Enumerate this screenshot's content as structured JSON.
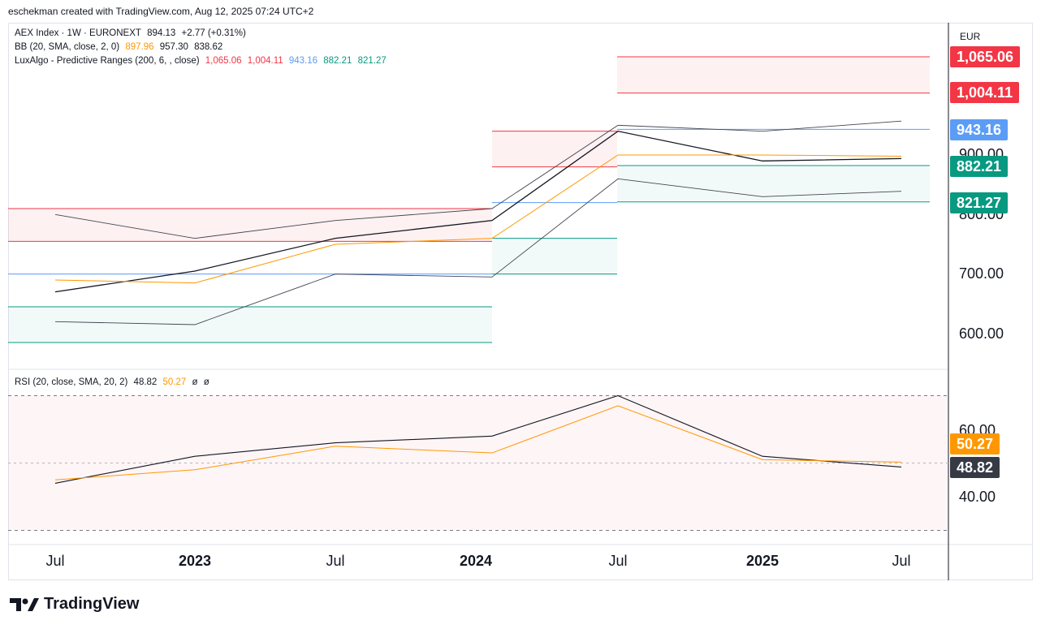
{
  "header": {
    "created_by": "eschekman created with TradingView.com, Aug 12, 2025 07:24 UTC+2"
  },
  "legend": {
    "main": {
      "symbol": "AEX Index · 1W · EURONEXT",
      "price": "894.13",
      "change": "+2.77 (+0.31%)"
    },
    "bb": {
      "name": "BB (20, SMA, close, 2, 0)",
      "basis": "897.96",
      "upper": "957.30",
      "lower": "838.62"
    },
    "lux": {
      "name": "LuxAlgo - Predictive Ranges (200, 6, , close)",
      "r2": "1,065.06",
      "r1": "1,004.11",
      "avg": "943.16",
      "s1": "882.21",
      "s2": "821.27"
    },
    "rsi": {
      "name": "RSI (20, close, SMA, 20, 2)",
      "rsi": "48.82",
      "ma": "50.27",
      "x1": "ø",
      "x2": "ø"
    }
  },
  "axis": {
    "currency": "EUR",
    "price_ticks": [
      "900.00",
      "800.00",
      "700.00",
      "600.00"
    ],
    "rsi_ticks": [
      "60.00",
      "40.00"
    ],
    "x_ticks": [
      {
        "label": "Jul",
        "bold": false
      },
      {
        "label": "2023",
        "bold": true
      },
      {
        "label": "Jul",
        "bold": false
      },
      {
        "label": "2024",
        "bold": true
      },
      {
        "label": "Jul",
        "bold": false
      },
      {
        "label": "2025",
        "bold": true
      },
      {
        "label": "Jul",
        "bold": false
      }
    ]
  },
  "badges": {
    "r2": "1,065.06",
    "r1": "1,004.11",
    "avg": "943.16",
    "s1": "882.21",
    "s2": "821.27",
    "rsi_ma": "50.27",
    "rsi": "48.82"
  },
  "colors": {
    "resistance": "#f23645",
    "average": "#5b9cf6",
    "support": "#089981",
    "bb_basis": "#ff9800",
    "price": "#131722",
    "bb_band": "#434651",
    "rsi_ma": "#ff9800",
    "rsi_badge": "#363a45"
  },
  "brand": "TradingView",
  "chart_data": [
    {
      "type": "line",
      "title": "AEX Index · 1W · EURONEXT",
      "ylabel": "EUR",
      "x": [
        "2022-07",
        "2023-01",
        "2023-07",
        "2024-01",
        "2024-07",
        "2025-01",
        "2025-07"
      ],
      "series": [
        {
          "name": "AEX Index",
          "values": [
            670,
            705,
            760,
            790,
            940,
            890,
            894
          ]
        },
        {
          "name": "BB basis",
          "values": [
            690,
            685,
            750,
            760,
            900,
            900,
            898
          ]
        },
        {
          "name": "BB upper",
          "values": [
            800,
            760,
            790,
            810,
            950,
            940,
            957
          ]
        },
        {
          "name": "BB lower",
          "values": [
            620,
            615,
            700,
            695,
            860,
            830,
            839
          ]
        }
      ],
      "predictive_ranges": [
        {
          "from": "2022-06",
          "to": "2024-01",
          "r2": 810,
          "r1": 755,
          "avg": 700,
          "s2": 585,
          "s1": 645
        },
        {
          "from": "2024-01",
          "to": "2024-05",
          "r2": 940,
          "r1": 880,
          "avg": 820,
          "s1": 760,
          "s2": 700
        },
        {
          "from": "2024-05",
          "to": "2025-08",
          "r2": 1065.06,
          "r1": 1004.11,
          "avg": 943.16,
          "s1": 882.21,
          "s2": 821.27
        }
      ],
      "ylim": [
        540,
        1080
      ]
    },
    {
      "type": "line",
      "title": "RSI (20, close, SMA, 20, 2)",
      "series": [
        {
          "name": "RSI",
          "values": [
            44,
            52,
            56,
            58,
            70,
            52,
            48.82
          ]
        },
        {
          "name": "RSI MA",
          "values": [
            45,
            48,
            55,
            53,
            67,
            51,
            50.27
          ]
        }
      ],
      "bands": [
        30,
        70
      ],
      "ylim": [
        27,
        74
      ]
    }
  ]
}
